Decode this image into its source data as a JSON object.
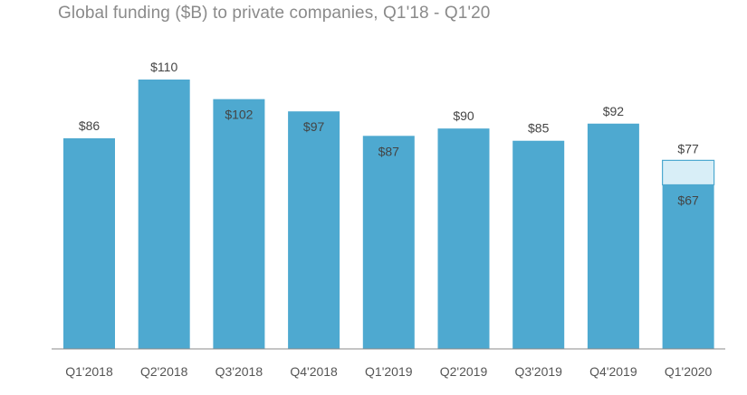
{
  "chart_data": {
    "type": "bar",
    "title": "Global funding ($B) to private companies, Q1'18 - Q1'20",
    "categories": [
      "Q1'2018",
      "Q2'2018",
      "Q3'2018",
      "Q4'2018",
      "Q1'2019",
      "Q2'2019",
      "Q3'2019",
      "Q4'2019",
      "Q1'2020"
    ],
    "series": [
      {
        "values": [
          86,
          110,
          102,
          97,
          87,
          90,
          85,
          92,
          67
        ],
        "labels": [
          "$86",
          "$110",
          "$102",
          "$97",
          "$87",
          "$90",
          "$85",
          "$92",
          "$67"
        ]
      },
      {
        "values": [
          null,
          null,
          null,
          null,
          null,
          null,
          null,
          null,
          77
        ],
        "labels": [
          "",
          "",
          "",
          "",
          "",
          "",
          "",
          "",
          "$77"
        ]
      }
    ],
    "xlabel": "",
    "ylabel": "",
    "ylim": [
      0,
      115
    ],
    "grid": false,
    "legend": "none",
    "colors": {
      "bar": "#4ea9d0",
      "projected_fill": "#d8eef7",
      "projected_stroke": "#4ea9d0",
      "axis": "#888888"
    }
  }
}
